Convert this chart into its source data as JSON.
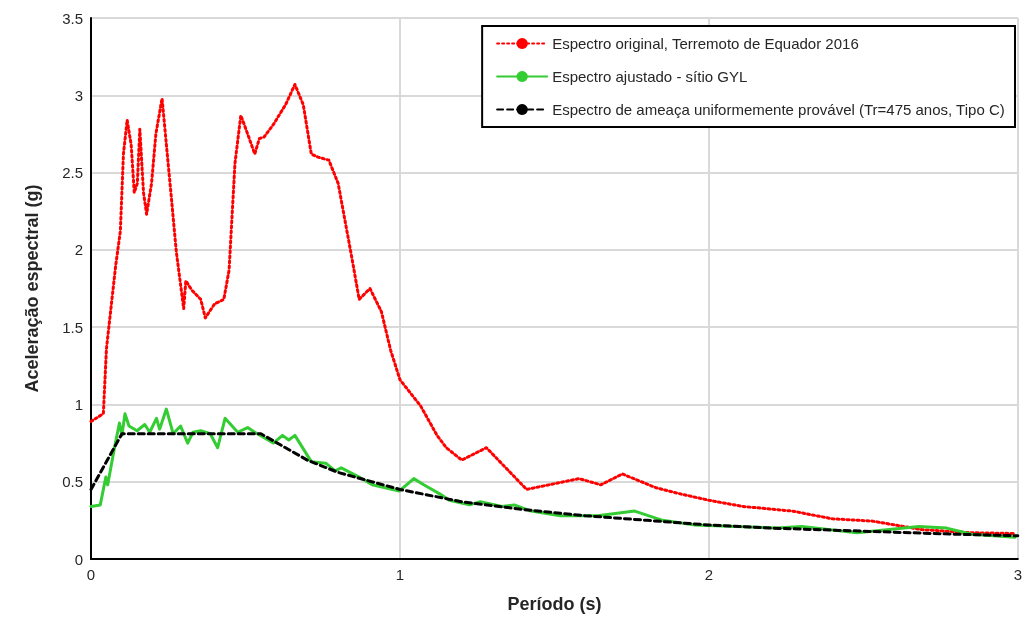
{
  "chart_data": {
    "type": "line",
    "xlabel": "Período (s)",
    "ylabel": "Aceleração espectral (g)",
    "xlim": [
      0,
      3
    ],
    "xticks": [
      0,
      1,
      2,
      3
    ],
    "ylim": [
      0,
      3.5
    ],
    "yticks": [
      0,
      0.5,
      1,
      1.5,
      2,
      2.5,
      3,
      3.5
    ],
    "grid": true,
    "legend": "top right",
    "marker": "none",
    "series": [
      {
        "name": "Espectro original, Terremoto de Equador 2016",
        "color": "#ff0000",
        "line_style": "dotted",
        "x": [
          0,
          0.04,
          0.05,
          0.08,
          0.095,
          0.105,
          0.117,
          0.13,
          0.14,
          0.15,
          0.158,
          0.17,
          0.18,
          0.196,
          0.21,
          0.23,
          0.244,
          0.26,
          0.276,
          0.3,
          0.307,
          0.326,
          0.355,
          0.37,
          0.4,
          0.43,
          0.447,
          0.466,
          0.485,
          0.507,
          0.53,
          0.545,
          0.56,
          0.59,
          0.63,
          0.66,
          0.687,
          0.713,
          0.735,
          0.77,
          0.8,
          0.846,
          0.868,
          0.903,
          0.94,
          0.97,
          1.0,
          1.067,
          1.12,
          1.15,
          1.2,
          1.28,
          1.41,
          1.58,
          1.65,
          1.72,
          1.83,
          1.91,
          2.0,
          2.11,
          2.27,
          2.4,
          2.53,
          2.69,
          2.85,
          2.99
        ],
        "values": [
          0.89,
          0.94,
          1.36,
          1.9,
          2.12,
          2.62,
          2.84,
          2.68,
          2.37,
          2.43,
          2.78,
          2.37,
          2.23,
          2.43,
          2.75,
          2.98,
          2.68,
          2.34,
          1.99,
          1.62,
          1.8,
          1.74,
          1.68,
          1.56,
          1.65,
          1.68,
          1.87,
          2.56,
          2.87,
          2.75,
          2.62,
          2.72,
          2.73,
          2.81,
          2.94,
          3.07,
          2.94,
          2.62,
          2.6,
          2.58,
          2.43,
          1.93,
          1.68,
          1.75,
          1.6,
          1.35,
          1.16,
          0.99,
          0.8,
          0.72,
          0.64,
          0.72,
          0.45,
          0.52,
          0.48,
          0.55,
          0.46,
          0.42,
          0.38,
          0.34,
          0.31,
          0.26,
          0.245,
          0.19,
          0.17,
          0.165
        ]
      },
      {
        "name": "Espectro ajustado - sítio GYL",
        "color": "#33cc33",
        "line_style": "solid",
        "x": [
          0,
          0.03,
          0.048,
          0.054,
          0.076,
          0.092,
          0.1,
          0.11,
          0.123,
          0.149,
          0.174,
          0.19,
          0.212,
          0.222,
          0.244,
          0.266,
          0.29,
          0.313,
          0.33,
          0.355,
          0.386,
          0.41,
          0.434,
          0.475,
          0.507,
          0.53,
          0.59,
          0.62,
          0.64,
          0.66,
          0.713,
          0.76,
          0.79,
          0.81,
          0.868,
          0.91,
          0.998,
          1.045,
          1.077,
          1.13,
          1.16,
          1.225,
          1.26,
          1.33,
          1.37,
          1.425,
          1.52,
          1.64,
          1.76,
          1.85,
          1.955,
          2.22,
          2.3,
          2.48,
          2.68,
          2.77,
          2.85,
          2.99
        ],
        "values": [
          0.34,
          0.35,
          0.53,
          0.48,
          0.72,
          0.88,
          0.8,
          0.94,
          0.86,
          0.83,
          0.87,
          0.82,
          0.91,
          0.84,
          0.97,
          0.81,
          0.86,
          0.75,
          0.82,
          0.83,
          0.81,
          0.72,
          0.91,
          0.82,
          0.85,
          0.82,
          0.75,
          0.8,
          0.77,
          0.8,
          0.63,
          0.62,
          0.57,
          0.59,
          0.53,
          0.48,
          0.44,
          0.52,
          0.48,
          0.42,
          0.38,
          0.35,
          0.37,
          0.34,
          0.35,
          0.31,
          0.28,
          0.28,
          0.31,
          0.25,
          0.22,
          0.2,
          0.21,
          0.17,
          0.21,
          0.2,
          0.16,
          0.14
        ]
      },
      {
        "name": "Espectro de ameaça uniformemente provável (Tr=475 anos, Tipo C)",
        "color": "#000000",
        "line_style": "dashed",
        "x": [
          0,
          0.1,
          0.55,
          0.7,
          0.8,
          1.0,
          1.2,
          1.4,
          1.6,
          1.8,
          2.0,
          2.2,
          2.5,
          2.8,
          3.0
        ],
        "values": [
          0.45,
          0.81,
          0.81,
          0.64,
          0.56,
          0.45,
          0.37,
          0.32,
          0.28,
          0.25,
          0.22,
          0.2,
          0.18,
          0.16,
          0.15
        ]
      }
    ]
  }
}
